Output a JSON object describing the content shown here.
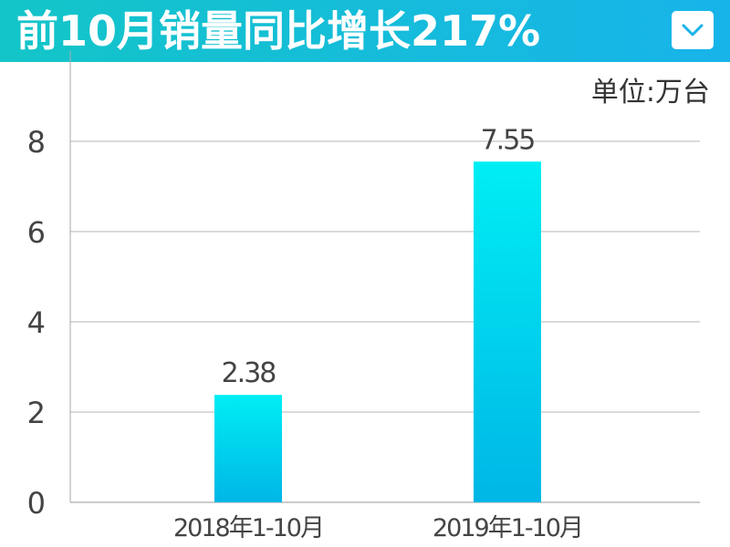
{
  "header": {
    "title": "前10月销量同比增长217%",
    "accent_start": "#13c5c8",
    "accent_end": "#17b4ea",
    "menu_icon": "chevron-down-icon"
  },
  "chart_data": {
    "type": "bar",
    "unit_label": "单位:万台",
    "categories": [
      "2018年1-10月",
      "2019年1-10月"
    ],
    "values": [
      2.38,
      7.55
    ],
    "value_labels": [
      "2.38",
      "7.55"
    ],
    "yticks": [
      "0",
      "2",
      "4",
      "6",
      "8"
    ],
    "ylim": [
      0,
      9
    ],
    "grid": true,
    "bar_color_top": "#00eef4",
    "bar_color_bottom": "#00b6e6"
  }
}
